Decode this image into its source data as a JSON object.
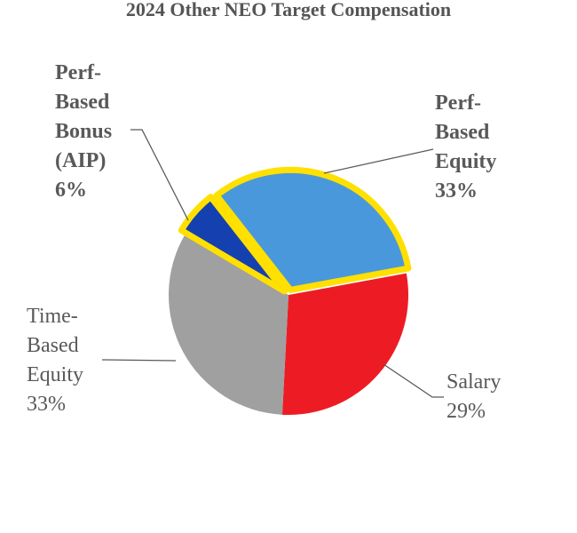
{
  "chart_data": {
    "type": "pie",
    "title": "2024 Other NEO Target Compensation",
    "categories": [
      "Perf-Based Equity",
      "Salary",
      "Time-Based Equity",
      "Perf-Based Bonus (AIP)"
    ],
    "values": [
      33,
      29,
      33,
      6
    ],
    "value_labels": [
      "33%",
      "29%",
      "33%",
      "6%"
    ],
    "colors": [
      "#4a98dc",
      "#ed1c24",
      "#a0a0a1",
      "#1540b0"
    ],
    "highlighted": [
      true,
      false,
      false,
      true
    ],
    "highlight_color": "#ffe000"
  }
}
